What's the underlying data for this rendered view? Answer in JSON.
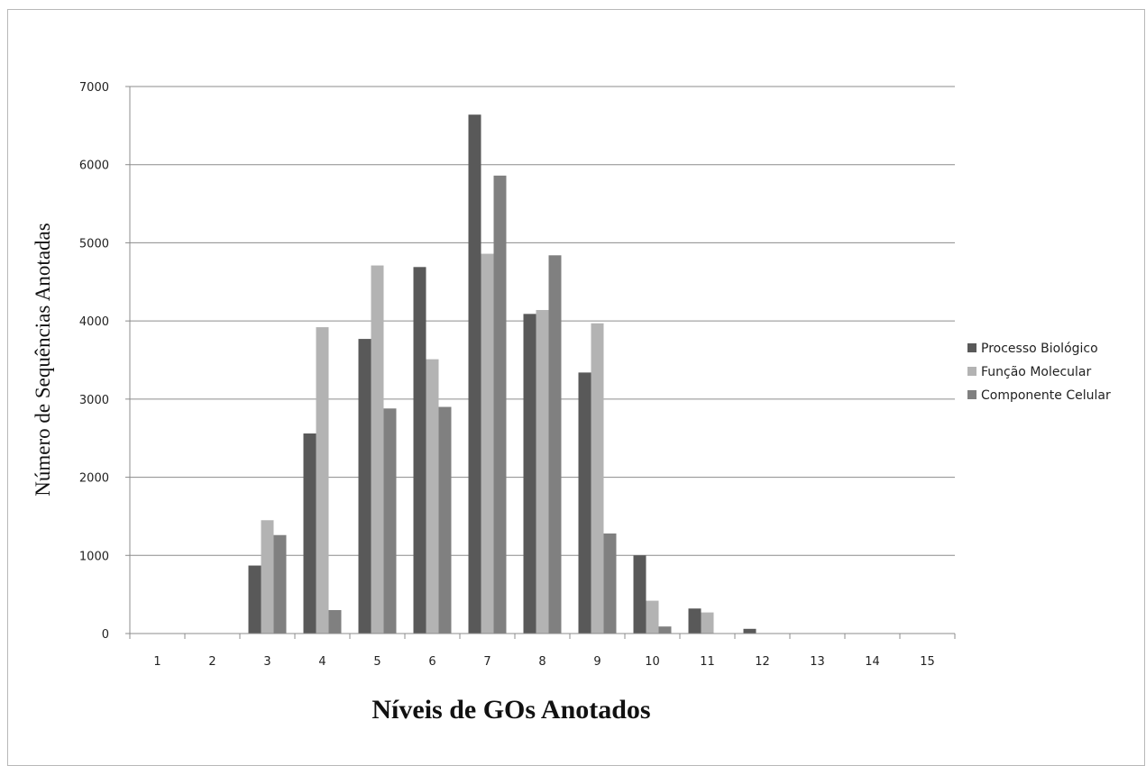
{
  "chart_data": {
    "type": "bar",
    "title": "",
    "xlabel": "Níveis de GOs Anotados",
    "ylabel": "Número de Sequências Anotadas",
    "categories": [
      "1",
      "2",
      "3",
      "4",
      "5",
      "6",
      "7",
      "8",
      "9",
      "10",
      "11",
      "12",
      "13",
      "14",
      "15"
    ],
    "ylim": [
      0,
      7000
    ],
    "yticks": [
      "0",
      "1000",
      "2000",
      "3000",
      "4000",
      "5000",
      "6000",
      "7000"
    ],
    "grid": true,
    "legend_position": "right",
    "series": [
      {
        "name": "Processo Biológico",
        "color": "#595959",
        "values": [
          0,
          0,
          870,
          2560,
          3770,
          4690,
          6640,
          4090,
          3340,
          1000,
          320,
          60,
          0,
          0,
          0
        ]
      },
      {
        "name": "Função Molecular",
        "color": "#b3b3b3",
        "values": [
          0,
          0,
          1450,
          3920,
          4710,
          3510,
          4860,
          4140,
          3970,
          420,
          270,
          0,
          0,
          0,
          0
        ]
      },
      {
        "name": "Componente Celular",
        "color": "#808080",
        "values": [
          0,
          0,
          1260,
          300,
          2880,
          2900,
          5860,
          4840,
          1280,
          90,
          0,
          0,
          0,
          0,
          0
        ]
      }
    ]
  }
}
